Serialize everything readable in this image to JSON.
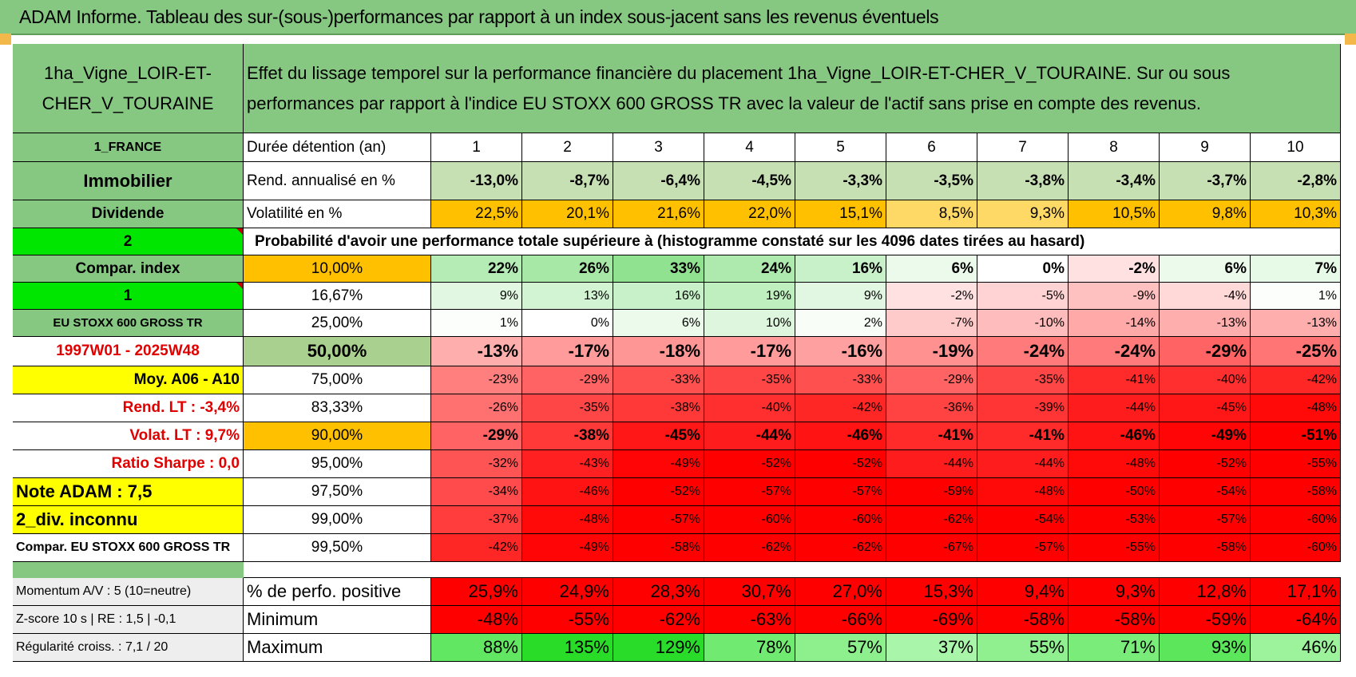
{
  "banner": "ADAM Informe. Tableau des sur-(sous-)performances par rapport à un index sous-jacent sans les revenus éventuels",
  "asset_name": "1ha_Vigne_LOIR-ET-CHER_V_TOURAINE",
  "description": "Effet du lissage temporel sur la performance financière du placement 1ha_Vigne_LOIR-ET-CHER_V_TOURAINE. Sur ou sous performances par rapport à l'indice EU STOXX 600 GROSS TR avec la valeur de l'actif sans prise en compte des revenus.",
  "left": [
    "1_FRANCE",
    "Immobilier",
    "Dividende",
    "2",
    "Compar. index",
    "1",
    "EU STOXX 600 GROSS TR",
    "1997W01 - 2025W48",
    "Moy. A06 - A10",
    "Rend. LT :    -3,4%",
    "Volat. LT :    9,7%",
    "Ratio Sharpe :     0,0",
    "Note ADAM : 7,5",
    "2_div. inconnu",
    "Compar. EU STOXX 600 GROSS TR"
  ],
  "row_labels": {
    "duration": "Durée détention (an)",
    "rend": "Rend. annualisé en %",
    "vol": "Volatilité en %",
    "prob_title": "Probabilité d'avoir une performance totale supérieure à (histogramme constaté sur les 4096 dates tirées au hasard)"
  },
  "years": [
    "1",
    "2",
    "3",
    "4",
    "5",
    "6",
    "7",
    "8",
    "9",
    "10"
  ],
  "rend": [
    "-13,0%",
    "-8,7%",
    "-6,4%",
    "-4,5%",
    "-3,3%",
    "-3,5%",
    "-3,8%",
    "-3,4%",
    "-3,7%",
    "-2,8%"
  ],
  "vol": [
    "22,5%",
    "20,1%",
    "21,6%",
    "22,0%",
    "15,1%",
    "8,5%",
    "9,3%",
    "10,5%",
    "9,8%",
    "10,3%"
  ],
  "prob_rows": [
    {
      "pct": "10,00%",
      "vals": [
        "22%",
        "26%",
        "33%",
        "24%",
        "16%",
        "6%",
        "0%",
        "-2%",
        "6%",
        "7%"
      ]
    },
    {
      "pct": "16,67%",
      "vals": [
        "9%",
        "13%",
        "16%",
        "19%",
        "9%",
        "-2%",
        "-5%",
        "-9%",
        "-4%",
        "1%"
      ]
    },
    {
      "pct": "25,00%",
      "vals": [
        "1%",
        "0%",
        "6%",
        "10%",
        "2%",
        "-7%",
        "-10%",
        "-14%",
        "-13%",
        "-13%"
      ]
    },
    {
      "pct": "50,00%",
      "vals": [
        "-13%",
        "-17%",
        "-18%",
        "-17%",
        "-16%",
        "-19%",
        "-24%",
        "-24%",
        "-29%",
        "-25%"
      ]
    },
    {
      "pct": "75,00%",
      "vals": [
        "-23%",
        "-29%",
        "-33%",
        "-35%",
        "-33%",
        "-29%",
        "-35%",
        "-41%",
        "-40%",
        "-42%"
      ]
    },
    {
      "pct": "83,33%",
      "vals": [
        "-26%",
        "-35%",
        "-38%",
        "-40%",
        "-42%",
        "-36%",
        "-39%",
        "-44%",
        "-45%",
        "-48%"
      ]
    },
    {
      "pct": "90,00%",
      "vals": [
        "-29%",
        "-38%",
        "-45%",
        "-44%",
        "-46%",
        "-41%",
        "-41%",
        "-46%",
        "-49%",
        "-51%"
      ]
    },
    {
      "pct": "95,00%",
      "vals": [
        "-32%",
        "-43%",
        "-49%",
        "-52%",
        "-52%",
        "-44%",
        "-44%",
        "-48%",
        "-52%",
        "-55%"
      ]
    },
    {
      "pct": "97,50%",
      "vals": [
        "-34%",
        "-46%",
        "-52%",
        "-57%",
        "-57%",
        "-59%",
        "-48%",
        "-50%",
        "-54%",
        "-58%"
      ]
    },
    {
      "pct": "99,00%",
      "vals": [
        "-37%",
        "-48%",
        "-57%",
        "-60%",
        "-60%",
        "-62%",
        "-54%",
        "-53%",
        "-57%",
        "-60%"
      ]
    },
    {
      "pct": "99,50%",
      "vals": [
        "-42%",
        "-49%",
        "-58%",
        "-62%",
        "-62%",
        "-67%",
        "-57%",
        "-55%",
        "-58%",
        "-60%"
      ]
    }
  ],
  "bottom": [
    {
      "left": "Momentum A/V : 5 (10=neutre)",
      "label": "% de perfo. positive",
      "vals": [
        "25,9%",
        "24,9%",
        "28,3%",
        "30,7%",
        "27,0%",
        "15,3%",
        "9,4%",
        "9,3%",
        "12,8%",
        "17,1%"
      ]
    },
    {
      "left": "Z-score 10 s | RE : 1,5 | -0,1",
      "label": "Minimum",
      "vals": [
        "-48%",
        "-55%",
        "-62%",
        "-63%",
        "-66%",
        "-69%",
        "-58%",
        "-58%",
        "-59%",
        "-64%"
      ]
    },
    {
      "left": "Régularité croiss. : 7,1 / 20",
      "label": "Maximum",
      "vals": [
        "88%",
        "135%",
        "129%",
        "78%",
        "57%",
        "37%",
        "55%",
        "71%",
        "93%",
        "46%"
      ]
    }
  ],
  "colors": {
    "header_green": "#86c882",
    "light_green": "#c6e0b4",
    "yellow": "#ffff00",
    "orange": "#ffc000",
    "bright_green": "#00e600",
    "red": "#ff0000"
  }
}
